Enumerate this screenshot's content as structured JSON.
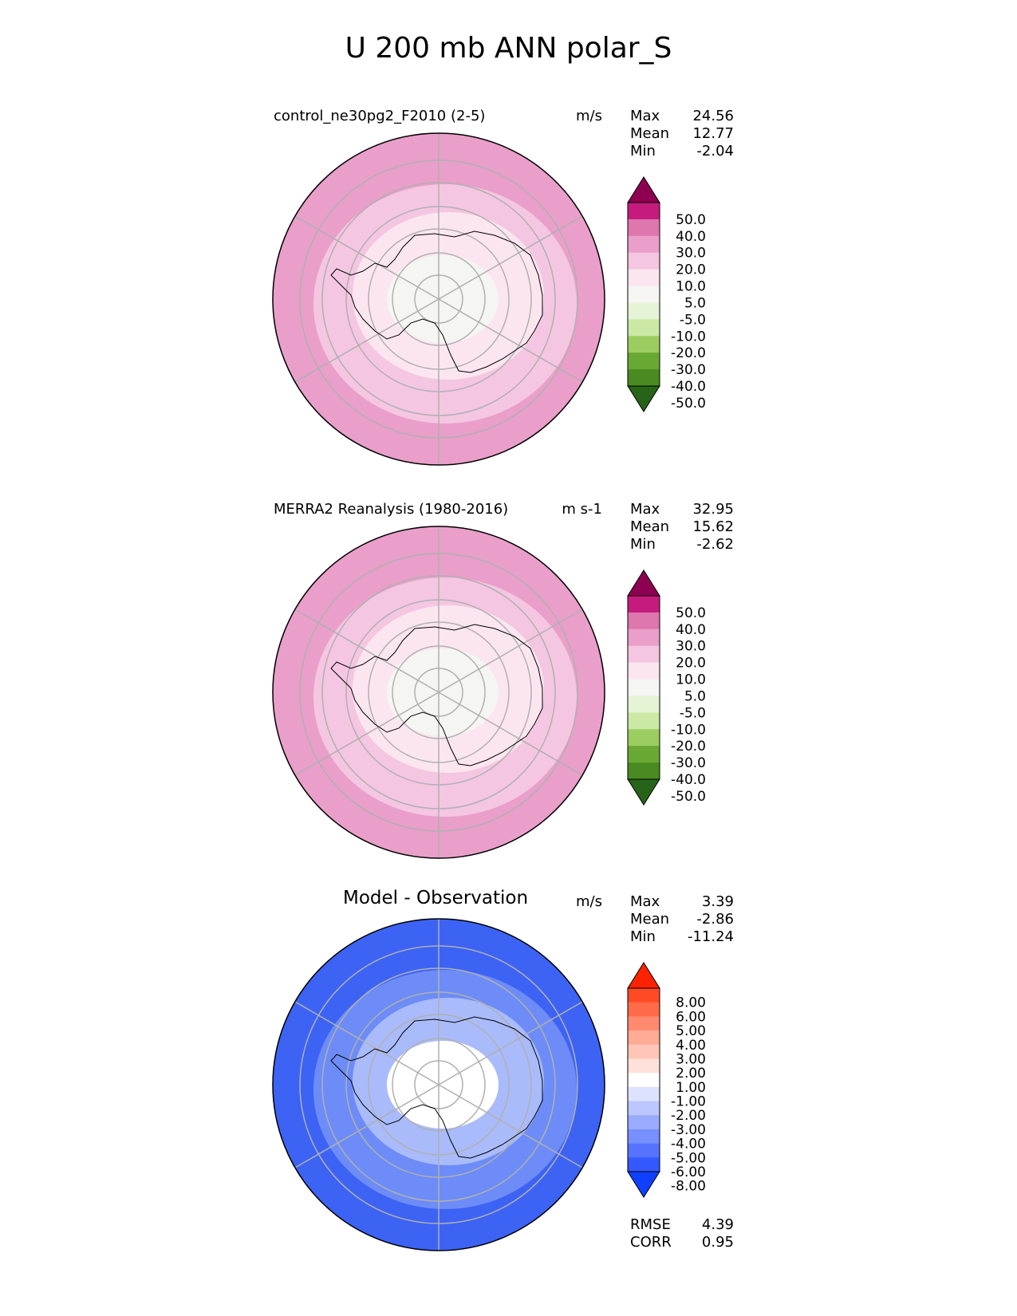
{
  "page_title": "U 200 mb ANN polar_S",
  "panels": [
    {
      "title": "control_ne30pg2_F2010 (2-5)",
      "units": "m/s",
      "stats": [
        {
          "label": "Max",
          "value": "24.56"
        },
        {
          "label": "Mean",
          "value": "12.77"
        },
        {
          "label": "Min",
          "value": "-2.04"
        }
      ],
      "colorbar": {
        "labels": [
          "50.0",
          "40.0",
          "30.0",
          "20.0",
          "10.0",
          "5.0",
          "-5.0",
          "-10.0",
          "-20.0",
          "-30.0",
          "-40.0",
          "-50.0"
        ],
        "colors": [
          "#8e0152",
          "#c51b7d",
          "#de77ae",
          "#e99fca",
          "#f4c6e1",
          "#fbe6f0",
          "#f5f5f3",
          "#e6f4d6",
          "#cbe9a5",
          "#9ccd60",
          "#6aa834",
          "#4a8b21",
          "#276419"
        ]
      },
      "rings": [
        "#e99fca",
        "#f4c6e1",
        "#fbe6f0",
        "#f5f5f3"
      ]
    },
    {
      "title": "MERRA2 Reanalysis (1980-2016)",
      "units": "m s-1",
      "stats": [
        {
          "label": "Max",
          "value": "32.95"
        },
        {
          "label": "Mean",
          "value": "15.62"
        },
        {
          "label": "Min",
          "value": "-2.62"
        }
      ],
      "colorbar": {
        "labels": [
          "50.0",
          "40.0",
          "30.0",
          "20.0",
          "10.0",
          "5.0",
          "-5.0",
          "-10.0",
          "-20.0",
          "-30.0",
          "-40.0",
          "-50.0"
        ],
        "colors": [
          "#8e0152",
          "#c51b7d",
          "#de77ae",
          "#e99fca",
          "#f4c6e1",
          "#fbe6f0",
          "#f5f5f3",
          "#e6f4d6",
          "#cbe9a5",
          "#9ccd60",
          "#6aa834",
          "#4a8b21",
          "#276419"
        ]
      },
      "rings": [
        "#e99fca",
        "#f4c6e1",
        "#fbe6f0",
        "#f5f5f3"
      ]
    },
    {
      "title": "Model - Observation",
      "units": "m/s",
      "stats": [
        {
          "label": "Max",
          "value": "3.39"
        },
        {
          "label": "Mean",
          "value": "-2.86"
        },
        {
          "label": "Min",
          "value": "-11.24"
        }
      ],
      "colorbar": {
        "labels": [
          "8.00",
          "6.00",
          "5.00",
          "4.00",
          "3.00",
          "2.00",
          "1.00",
          "-1.00",
          "-2.00",
          "-3.00",
          "-4.00",
          "-5.00",
          "-6.00",
          "-8.00"
        ],
        "colors": [
          "#ff2200",
          "#ff4a26",
          "#ff6a48",
          "#ff8a70",
          "#ffab96",
          "#ffc6b7",
          "#ffe1d9",
          "#ffffff",
          "#dde3ff",
          "#bcc7ff",
          "#9aabff",
          "#788fff",
          "#5673ff",
          "#3458ff",
          "#1040ff"
        ]
      },
      "rings": [
        "#3d63f5",
        "#6d8cf7",
        "#a9bbfb",
        "#ffffff"
      ]
    }
  ],
  "summary": [
    {
      "label": "RMSE",
      "value": "4.39"
    },
    {
      "label": "CORR",
      "value": "0.95"
    }
  ]
}
